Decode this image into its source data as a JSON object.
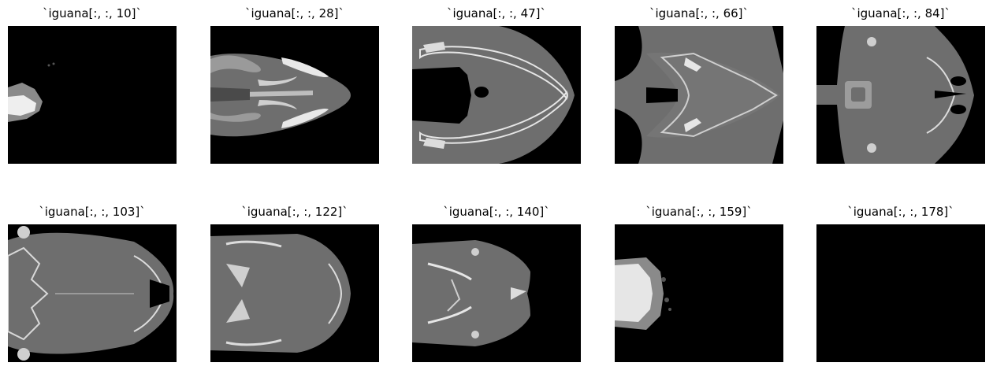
{
  "panels": [
    {
      "title": "`iguana[:, :, 10]`"
    },
    {
      "title": "`iguana[:, :, 28]`"
    },
    {
      "title": "`iguana[:, :, 47]`"
    },
    {
      "title": "`iguana[:, :, 66]`"
    },
    {
      "title": "`iguana[:, :, 84]`"
    },
    {
      "title": "`iguana[:, :, 103]`"
    },
    {
      "title": "`iguana[:, :, 122]`"
    },
    {
      "title": "`iguana[:, :, 140]`"
    },
    {
      "title": "`iguana[:, :, 159]`"
    },
    {
      "title": "`iguana[:, :, 178]`"
    }
  ],
  "colors": {
    "background": "#000000",
    "tissue": "#6e6e6e",
    "bone": "#e6e6e6"
  }
}
